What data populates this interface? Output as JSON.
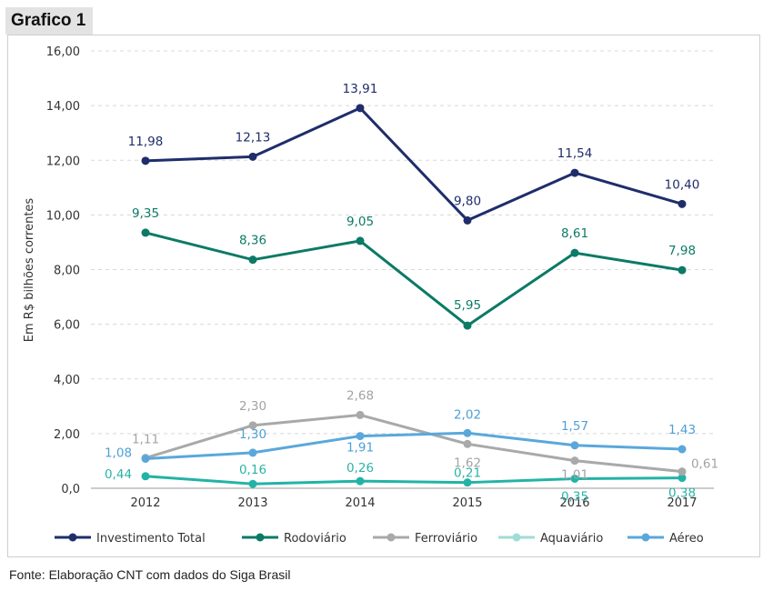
{
  "header": {
    "title": "Grafico 1"
  },
  "footer": {
    "source": "Fonte: Elaboração CNT com dados do Siga Brasil"
  },
  "chart_data": {
    "type": "line",
    "title": "Grafico 1",
    "xlabel": "",
    "ylabel": "Em R$ bilhões correntes",
    "ylim": [
      0,
      16
    ],
    "yticks": [
      0,
      2,
      4,
      6,
      8,
      10,
      12,
      14,
      16
    ],
    "ytick_labels": [
      "0,0",
      "2,00",
      "4,00",
      "6,00",
      "8,00",
      "10,00",
      "12,00",
      "14,00",
      "16,00"
    ],
    "grid": "horizontal dashed",
    "legend": "bottom",
    "categories": [
      "2012",
      "2013",
      "2014",
      "2015",
      "2016",
      "2017"
    ],
    "series": [
      {
        "name": "Investimento Total",
        "color": "#1f2d6b",
        "values": [
          11.98,
          12.13,
          13.91,
          9.8,
          11.54,
          10.4
        ],
        "labels": [
          "11,98",
          "12,13",
          "13,91",
          "9,80",
          "11,54",
          "10,40"
        ]
      },
      {
        "name": "Rodoviário",
        "color": "#0b7a66",
        "values": [
          9.35,
          8.36,
          9.05,
          5.95,
          8.61,
          7.98
        ],
        "labels": [
          "9,35",
          "8,36",
          "9,05",
          "5,95",
          "8,61",
          "7,98"
        ]
      },
      {
        "name": "Ferroviário",
        "color": "#a9a9a9",
        "values": [
          1.11,
          2.3,
          2.68,
          1.62,
          1.01,
          0.61
        ],
        "labels": [
          "1,11",
          "2,30",
          "2,68",
          "1,62",
          "1,01",
          "0,61"
        ]
      },
      {
        "name": "Aquaviário",
        "color": "#22b3a6",
        "legend_color": "#9fdcd5",
        "values": [
          0.44,
          0.16,
          0.26,
          0.21,
          0.35,
          0.38
        ],
        "labels": [
          "0,44",
          "0,16",
          "0,26",
          "0,21",
          "0,35",
          "0,38"
        ]
      },
      {
        "name": "Aéreo",
        "color": "#5aa8db",
        "values": [
          1.08,
          1.3,
          1.91,
          2.02,
          1.57,
          1.43
        ],
        "labels": [
          "1,08",
          "1,30",
          "1,91",
          "2,02",
          "1,57",
          "1,43"
        ]
      }
    ]
  }
}
